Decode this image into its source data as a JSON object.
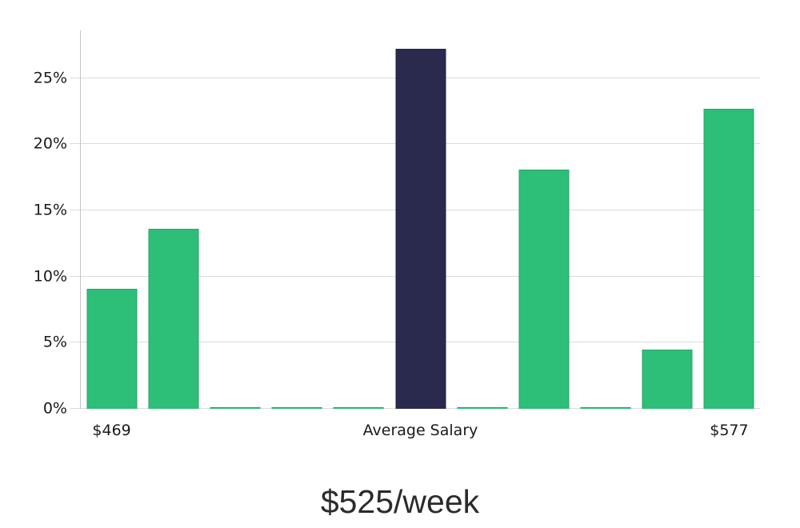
{
  "chart_data": {
    "type": "bar",
    "title": "$525/week",
    "description": "Salary distribution histogram with highlighted average salary bin",
    "unit": "%",
    "values": [
      9.1,
      13.6,
      0.1,
      0.1,
      0.1,
      27.2,
      0.1,
      18.1,
      0.1,
      4.5,
      22.7
    ],
    "highlight_index": 5,
    "x_tick_labels": [
      {
        "index": 0,
        "label": "$469"
      },
      {
        "index": 5,
        "label": "Average Salary"
      },
      {
        "index": 10,
        "label": "$577"
      }
    ],
    "y_ticks": [
      {
        "value": 0,
        "label": "0%"
      },
      {
        "value": 5,
        "label": "5%"
      },
      {
        "value": 10,
        "label": "10%"
      },
      {
        "value": 15,
        "label": "15%"
      },
      {
        "value": 20,
        "label": "20%"
      },
      {
        "value": 25,
        "label": "25%"
      }
    ],
    "y_max": 28.6,
    "grid": true,
    "legend_position": "none",
    "colors": {
      "bar": "#2dbe78",
      "highlight": "#2a2a4e",
      "grid": "#dcdcdc",
      "axis": "#c4c4c4",
      "tick_text": "#1a1a1a",
      "title_text": "#2b2b2b"
    }
  }
}
